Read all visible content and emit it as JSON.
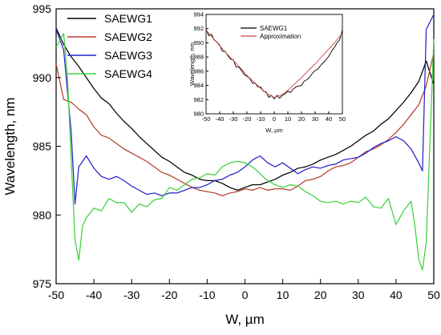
{
  "chart_data": [
    {
      "type": "line",
      "xlabel": "W, µm",
      "ylabel": "Wavelength, nm",
      "xlim": [
        -50,
        50
      ],
      "ylim": [
        975,
        995
      ],
      "xticks": [
        -50,
        -40,
        -30,
        -20,
        -10,
        0,
        10,
        20,
        30,
        40,
        50
      ],
      "yticks": [
        975,
        980,
        985,
        990,
        995
      ],
      "grid": false,
      "legend_position": "top-left",
      "series": [
        {
          "name": "SAEWG1",
          "color": "#000000",
          "x": [
            -50,
            -48,
            -46,
            -44,
            -42,
            -40,
            -38,
            -36,
            -34,
            -32,
            -30,
            -28,
            -26,
            -24,
            -22,
            -20,
            -18,
            -16,
            -14,
            -12,
            -10,
            -8,
            -6,
            -4,
            -2,
            0,
            2,
            4,
            6,
            8,
            10,
            12,
            14,
            16,
            18,
            20,
            22,
            24,
            26,
            28,
            30,
            32,
            34,
            36,
            38,
            40,
            42,
            44,
            46,
            48,
            50
          ],
          "y": [
            993.6,
            992.4,
            991.5,
            990.8,
            990.0,
            989.2,
            988.5,
            988.1,
            987.4,
            986.8,
            986.3,
            985.7,
            985.2,
            984.7,
            984.2,
            983.9,
            983.5,
            983.1,
            982.9,
            982.6,
            982.5,
            982.5,
            982.3,
            982.0,
            981.8,
            982.0,
            982.2,
            982.2,
            982.4,
            982.6,
            982.9,
            983.1,
            983.4,
            983.5,
            983.7,
            984.0,
            984.2,
            984.4,
            984.7,
            985.0,
            985.4,
            985.8,
            986.1,
            986.6,
            987.0,
            987.6,
            988.2,
            988.9,
            989.7,
            991.2,
            989.5
          ]
        },
        {
          "name": "SAEWG2",
          "color": "#b5412e",
          "x": [
            -50,
            -48,
            -46,
            -44,
            -42,
            -40,
            -38,
            -36,
            -34,
            -32,
            -30,
            -28,
            -26,
            -24,
            -22,
            -20,
            -18,
            -16,
            -14,
            -12,
            -10,
            -8,
            -6,
            -4,
            -2,
            0,
            2,
            4,
            6,
            8,
            10,
            12,
            14,
            16,
            18,
            20,
            22,
            24,
            26,
            28,
            30,
            32,
            34,
            36,
            38,
            40,
            42,
            44,
            46,
            48,
            50
          ],
          "y": [
            991.0,
            988.4,
            988.2,
            987.7,
            987.3,
            986.4,
            985.8,
            985.6,
            985.2,
            984.8,
            984.5,
            984.2,
            983.9,
            983.5,
            983.1,
            982.9,
            982.6,
            982.3,
            982.0,
            981.8,
            981.7,
            981.6,
            981.4,
            981.6,
            981.7,
            981.9,
            981.8,
            982.0,
            981.8,
            981.9,
            981.9,
            981.8,
            982.1,
            982.5,
            982.6,
            982.8,
            983.2,
            983.5,
            983.6,
            983.8,
            984.2,
            984.6,
            984.8,
            985.1,
            985.5,
            986.0,
            986.6,
            987.3,
            988.0,
            989.4,
            991.8
          ]
        },
        {
          "name": "SAEWG3",
          "color": "#2424c8",
          "x": [
            -50,
            -48,
            -46,
            -45,
            -44,
            -42,
            -40,
            -38,
            -36,
            -34,
            -32,
            -30,
            -28,
            -26,
            -24,
            -22,
            -20,
            -18,
            -16,
            -14,
            -12,
            -10,
            -8,
            -6,
            -4,
            -2,
            0,
            2,
            4,
            6,
            8,
            10,
            12,
            14,
            16,
            18,
            20,
            22,
            24,
            26,
            28,
            30,
            32,
            34,
            36,
            38,
            40,
            42,
            44,
            46,
            47,
            48,
            50
          ],
          "y": [
            993.5,
            992.0,
            986.0,
            980.8,
            983.5,
            984.3,
            983.4,
            982.8,
            982.6,
            982.8,
            982.5,
            982.1,
            981.8,
            981.5,
            981.6,
            981.4,
            981.6,
            981.6,
            981.8,
            982.0,
            982.0,
            982.2,
            982.5,
            982.6,
            982.9,
            983.1,
            983.5,
            984.0,
            984.3,
            983.8,
            983.5,
            983.8,
            983.4,
            983.0,
            983.3,
            983.5,
            983.4,
            983.6,
            983.7,
            984.0,
            984.1,
            984.2,
            984.5,
            984.9,
            985.2,
            985.4,
            985.7,
            985.4,
            984.8,
            983.8,
            983.2,
            993.5,
            994.6
          ]
        },
        {
          "name": "SAEWG4",
          "color": "#3ed13e",
          "x": [
            -50,
            -48,
            -47,
            -46,
            -45,
            -44,
            -43,
            -42,
            -40,
            -38,
            -36,
            -34,
            -32,
            -30,
            -28,
            -26,
            -24,
            -22,
            -20,
            -18,
            -16,
            -14,
            -12,
            -10,
            -8,
            -6,
            -4,
            -2,
            0,
            2,
            4,
            6,
            8,
            10,
            12,
            14,
            16,
            18,
            20,
            22,
            24,
            26,
            28,
            30,
            32,
            34,
            36,
            38,
            40,
            42,
            44,
            45,
            46,
            47,
            48,
            50
          ],
          "y": [
            992.2,
            993.2,
            990.0,
            984.0,
            978.2,
            976.7,
            979.2,
            979.8,
            980.5,
            980.3,
            981.2,
            980.9,
            980.9,
            980.2,
            980.8,
            980.6,
            981.1,
            981.2,
            982.0,
            981.8,
            982.2,
            982.6,
            982.7,
            983.0,
            982.9,
            983.5,
            983.8,
            983.9,
            983.8,
            983.5,
            983.0,
            982.5,
            982.2,
            982.0,
            982.2,
            982.1,
            981.7,
            981.4,
            981.0,
            980.9,
            981.0,
            980.8,
            981.0,
            980.9,
            981.3,
            980.6,
            980.5,
            981.2,
            979.3,
            980.3,
            981.0,
            979.2,
            976.8,
            976.0,
            978.0,
            992.8
          ]
        }
      ]
    },
    {
      "type": "line",
      "xlabel": "W, µm",
      "ylabel": "Wavelength, nm",
      "xlim": [
        -50,
        50
      ],
      "ylim": [
        980,
        994
      ],
      "xticks": [
        -50,
        -40,
        -30,
        -20,
        -10,
        0,
        10,
        20,
        30,
        40,
        50
      ],
      "yticks": [
        980,
        982,
        984,
        986,
        988,
        990,
        992,
        994
      ],
      "grid": false,
      "legend_position": "top-center",
      "series": [
        {
          "name": "SAEWG1",
          "color": "#000000",
          "x": [
            -50,
            -48,
            -46,
            -44,
            -42,
            -40,
            -38,
            -36,
            -34,
            -32,
            -30,
            -28,
            -26,
            -24,
            -22,
            -20,
            -18,
            -16,
            -14,
            -12,
            -10,
            -8,
            -6,
            -4,
            -2,
            0,
            2,
            4,
            6,
            8,
            10,
            12,
            14,
            16,
            18,
            20,
            22,
            24,
            26,
            28,
            30,
            32,
            34,
            36,
            38,
            40,
            42,
            44,
            46,
            48,
            50
          ],
          "y": [
            991.9,
            991.0,
            991.2,
            990.4,
            990.1,
            989.7,
            988.8,
            988.8,
            988.2,
            987.7,
            987.6,
            986.6,
            986.6,
            986.1,
            985.5,
            985.3,
            985.0,
            984.3,
            984.3,
            983.8,
            983.8,
            983.2,
            983.1,
            982.3,
            982.6,
            982.1,
            982.6,
            982.2,
            982.6,
            982.8,
            983.2,
            983.0,
            983.5,
            983.8,
            983.9,
            984.0,
            984.6,
            984.8,
            985.2,
            985.7,
            986.1,
            986.3,
            986.8,
            987.2,
            987.6,
            988.1,
            988.8,
            989.3,
            990.0,
            990.4,
            991.8
          ]
        },
        {
          "name": "Approximation",
          "color": "#c8463a",
          "x": [
            -50,
            -45,
            -40,
            -35,
            -30,
            -25,
            -20,
            -15,
            -10,
            -5,
            0,
            5,
            10,
            15,
            20,
            25,
            30,
            35,
            40,
            45,
            50
          ],
          "y": [
            991.8,
            990.7,
            989.6,
            988.5,
            987.5,
            986.5,
            985.4,
            984.5,
            983.6,
            982.8,
            982.3,
            982.6,
            983.3,
            984.2,
            985.1,
            986.1,
            987.0,
            988.1,
            989.1,
            990.2,
            991.3
          ]
        }
      ]
    }
  ]
}
